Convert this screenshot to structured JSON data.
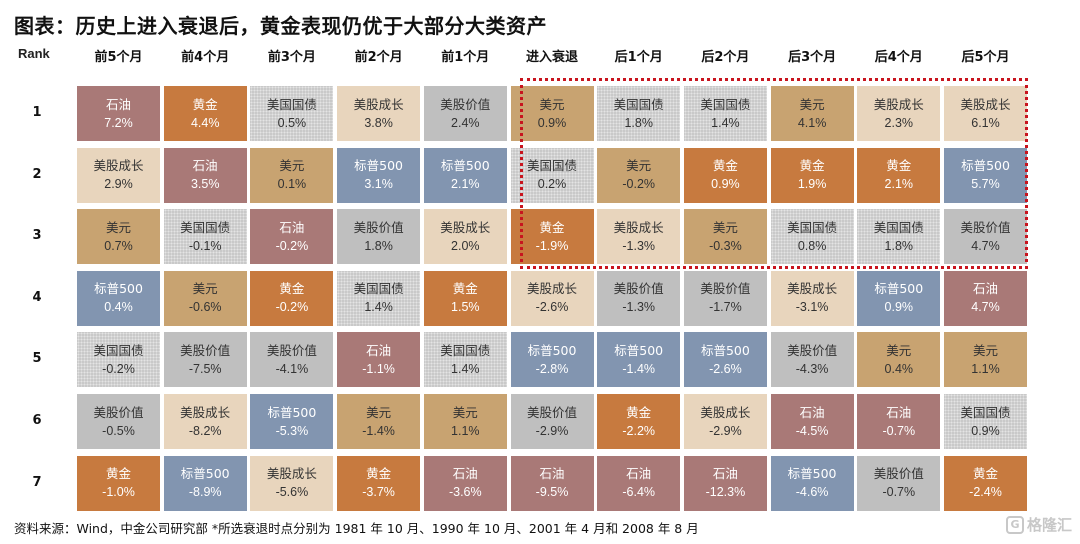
{
  "title": "图表：历史上进入衰退后，黄金表现仍优于大部分大类资产",
  "footer": "资料来源：Wind，中金公司研究部 *所选衰退时点分别为 1981 年 10 月、1990 年 10 月、2001 年 4 月和 2008 年 8 月",
  "watermark": "格隆汇",
  "chart_data": {
    "type": "table",
    "title": "图表：历史上进入衰退后，黄金表现仍优于大部分大类资产",
    "row_header": "Rank",
    "columns": [
      "前5个月",
      "前4个月",
      "前3个月",
      "前2个月",
      "前1个月",
      "进入衰退",
      "后1个月",
      "后2个月",
      "后3个月",
      "后4个月",
      "后5个月"
    ],
    "highlight_columns": [
      "进入衰退",
      "后1个月",
      "后2个月",
      "后3个月",
      "后4个月",
      "后5个月"
    ],
    "highlight_ranks": [
      1,
      2,
      3
    ],
    "highlight_color": "#c8141e",
    "asset_colors": {
      "石油": {
        "bg": "#a97977",
        "fg": "#ffffff"
      },
      "黄金": {
        "bg": "#c77a3f",
        "fg": "#ffffff"
      },
      "美国国债": {
        "bg": "#c9c9c9",
        "fg": "#333333",
        "pattern": "dotted"
      },
      "美股成长": {
        "bg": "#e8d5bd",
        "fg": "#333333"
      },
      "美股价值": {
        "bg": "#bfbfbf",
        "fg": "#333333"
      },
      "美元": {
        "bg": "#c8a371",
        "fg": "#333333"
      },
      "标普500": {
        "bg": "#8295b0",
        "fg": "#ffffff"
      }
    },
    "rows": [
      {
        "rank": "1",
        "cells": [
          [
            "石油",
            "7.2%"
          ],
          [
            "黄金",
            "4.4%"
          ],
          [
            "美国国债",
            "0.5%"
          ],
          [
            "美股成长",
            "3.8%"
          ],
          [
            "美股价值",
            "2.4%"
          ],
          [
            "美元",
            "0.9%"
          ],
          [
            "美国国债",
            "1.8%"
          ],
          [
            "美国国债",
            "1.4%"
          ],
          [
            "美元",
            "4.1%"
          ],
          [
            "美股成长",
            "2.3%"
          ],
          [
            "美股成长",
            "6.1%"
          ]
        ]
      },
      {
        "rank": "2",
        "cells": [
          [
            "美股成长",
            "2.9%"
          ],
          [
            "石油",
            "3.5%"
          ],
          [
            "美元",
            "0.1%"
          ],
          [
            "标普500",
            "3.1%"
          ],
          [
            "标普500",
            "2.1%"
          ],
          [
            "美国国债",
            "0.2%"
          ],
          [
            "美元",
            "-0.2%"
          ],
          [
            "黄金",
            "0.9%"
          ],
          [
            "黄金",
            "1.9%"
          ],
          [
            "黄金",
            "2.1%"
          ],
          [
            "标普500",
            "5.7%"
          ]
        ]
      },
      {
        "rank": "3",
        "cells": [
          [
            "美元",
            "0.7%"
          ],
          [
            "美国国债",
            "-0.1%"
          ],
          [
            "石油",
            "-0.2%"
          ],
          [
            "美股价值",
            "1.8%"
          ],
          [
            "美股成长",
            "2.0%"
          ],
          [
            "黄金",
            "-1.9%"
          ],
          [
            "美股成长",
            "-1.3%"
          ],
          [
            "美元",
            "-0.3%"
          ],
          [
            "美国国债",
            "0.8%"
          ],
          [
            "美国国债",
            "1.8%"
          ],
          [
            "美股价值",
            "4.7%"
          ]
        ]
      },
      {
        "rank": "4",
        "cells": [
          [
            "标普500",
            "0.4%"
          ],
          [
            "美元",
            "-0.6%"
          ],
          [
            "黄金",
            "-0.2%"
          ],
          [
            "美国国债",
            "1.4%"
          ],
          [
            "黄金",
            "1.5%"
          ],
          [
            "美股成长",
            "-2.6%"
          ],
          [
            "美股价值",
            "-1.3%"
          ],
          [
            "美股价值",
            "-1.7%"
          ],
          [
            "美股成长",
            "-3.1%"
          ],
          [
            "标普500",
            "0.9%"
          ],
          [
            "石油",
            "4.7%"
          ]
        ]
      },
      {
        "rank": "5",
        "cells": [
          [
            "美国国债",
            "-0.2%"
          ],
          [
            "美股价值",
            "-7.5%"
          ],
          [
            "美股价值",
            "-4.1%"
          ],
          [
            "石油",
            "-1.1%"
          ],
          [
            "美国国债",
            "1.4%"
          ],
          [
            "标普500",
            "-2.8%"
          ],
          [
            "标普500",
            "-1.4%"
          ],
          [
            "标普500",
            "-2.6%"
          ],
          [
            "美股价值",
            "-4.3%"
          ],
          [
            "美元",
            "0.4%"
          ],
          [
            "美元",
            "1.1%"
          ]
        ]
      },
      {
        "rank": "6",
        "cells": [
          [
            "美股价值",
            "-0.5%"
          ],
          [
            "美股成长",
            "-8.2%"
          ],
          [
            "标普500",
            "-5.3%"
          ],
          [
            "美元",
            "-1.4%"
          ],
          [
            "美元",
            "1.1%"
          ],
          [
            "美股价值",
            "-2.9%"
          ],
          [
            "黄金",
            "-2.2%"
          ],
          [
            "美股成长",
            "-2.9%"
          ],
          [
            "石油",
            "-4.5%"
          ],
          [
            "石油",
            "-0.7%"
          ],
          [
            "美国国债",
            "0.9%"
          ]
        ]
      },
      {
        "rank": "7",
        "cells": [
          [
            "黄金",
            "-1.0%"
          ],
          [
            "标普500",
            "-8.9%"
          ],
          [
            "美股成长",
            "-5.6%"
          ],
          [
            "黄金",
            "-3.7%"
          ],
          [
            "石油",
            "-3.6%"
          ],
          [
            "石油",
            "-9.5%"
          ],
          [
            "石油",
            "-6.4%"
          ],
          [
            "石油",
            "-12.3%"
          ],
          [
            "标普500",
            "-4.6%"
          ],
          [
            "美股价值",
            "-0.7%"
          ],
          [
            "黄金",
            "-2.4%"
          ]
        ]
      }
    ]
  }
}
